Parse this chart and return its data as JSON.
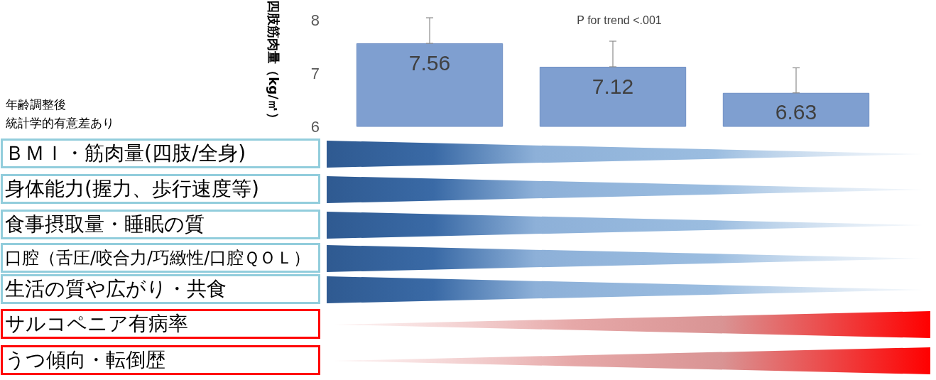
{
  "chart_data": {
    "type": "bar",
    "title": "P for trend <.001",
    "ylabel": "四肢筋肉量（kg/㎡）",
    "categories": [
      null,
      null,
      null
    ],
    "values": [
      7.56,
      7.12,
      6.63
    ],
    "color": "#7f9fd0",
    "errors": [
      [
        7.56,
        8.04
      ],
      [
        7.12,
        7.6
      ],
      [
        6.63,
        7.1
      ]
    ],
    "ylim": [
      6,
      8
    ],
    "yticks": [
      6,
      7,
      8
    ],
    "data_labels": true,
    "grid": false,
    "annotations": [
      "年齢調整後",
      "統計学的有意差あり",
      "ＢＭＩ・筋肉量(四肢/全身)",
      "身体能力(握力、歩行速度等)",
      "食事摂取量・睡眠の質",
      "口腔（舌圧/咬合力/巧緻性/口腔ＱＯＬ）",
      "生活の質や広がり・共食",
      "サルコペニア有病率",
      "うつ傾向・転倒歴"
    ]
  }
}
